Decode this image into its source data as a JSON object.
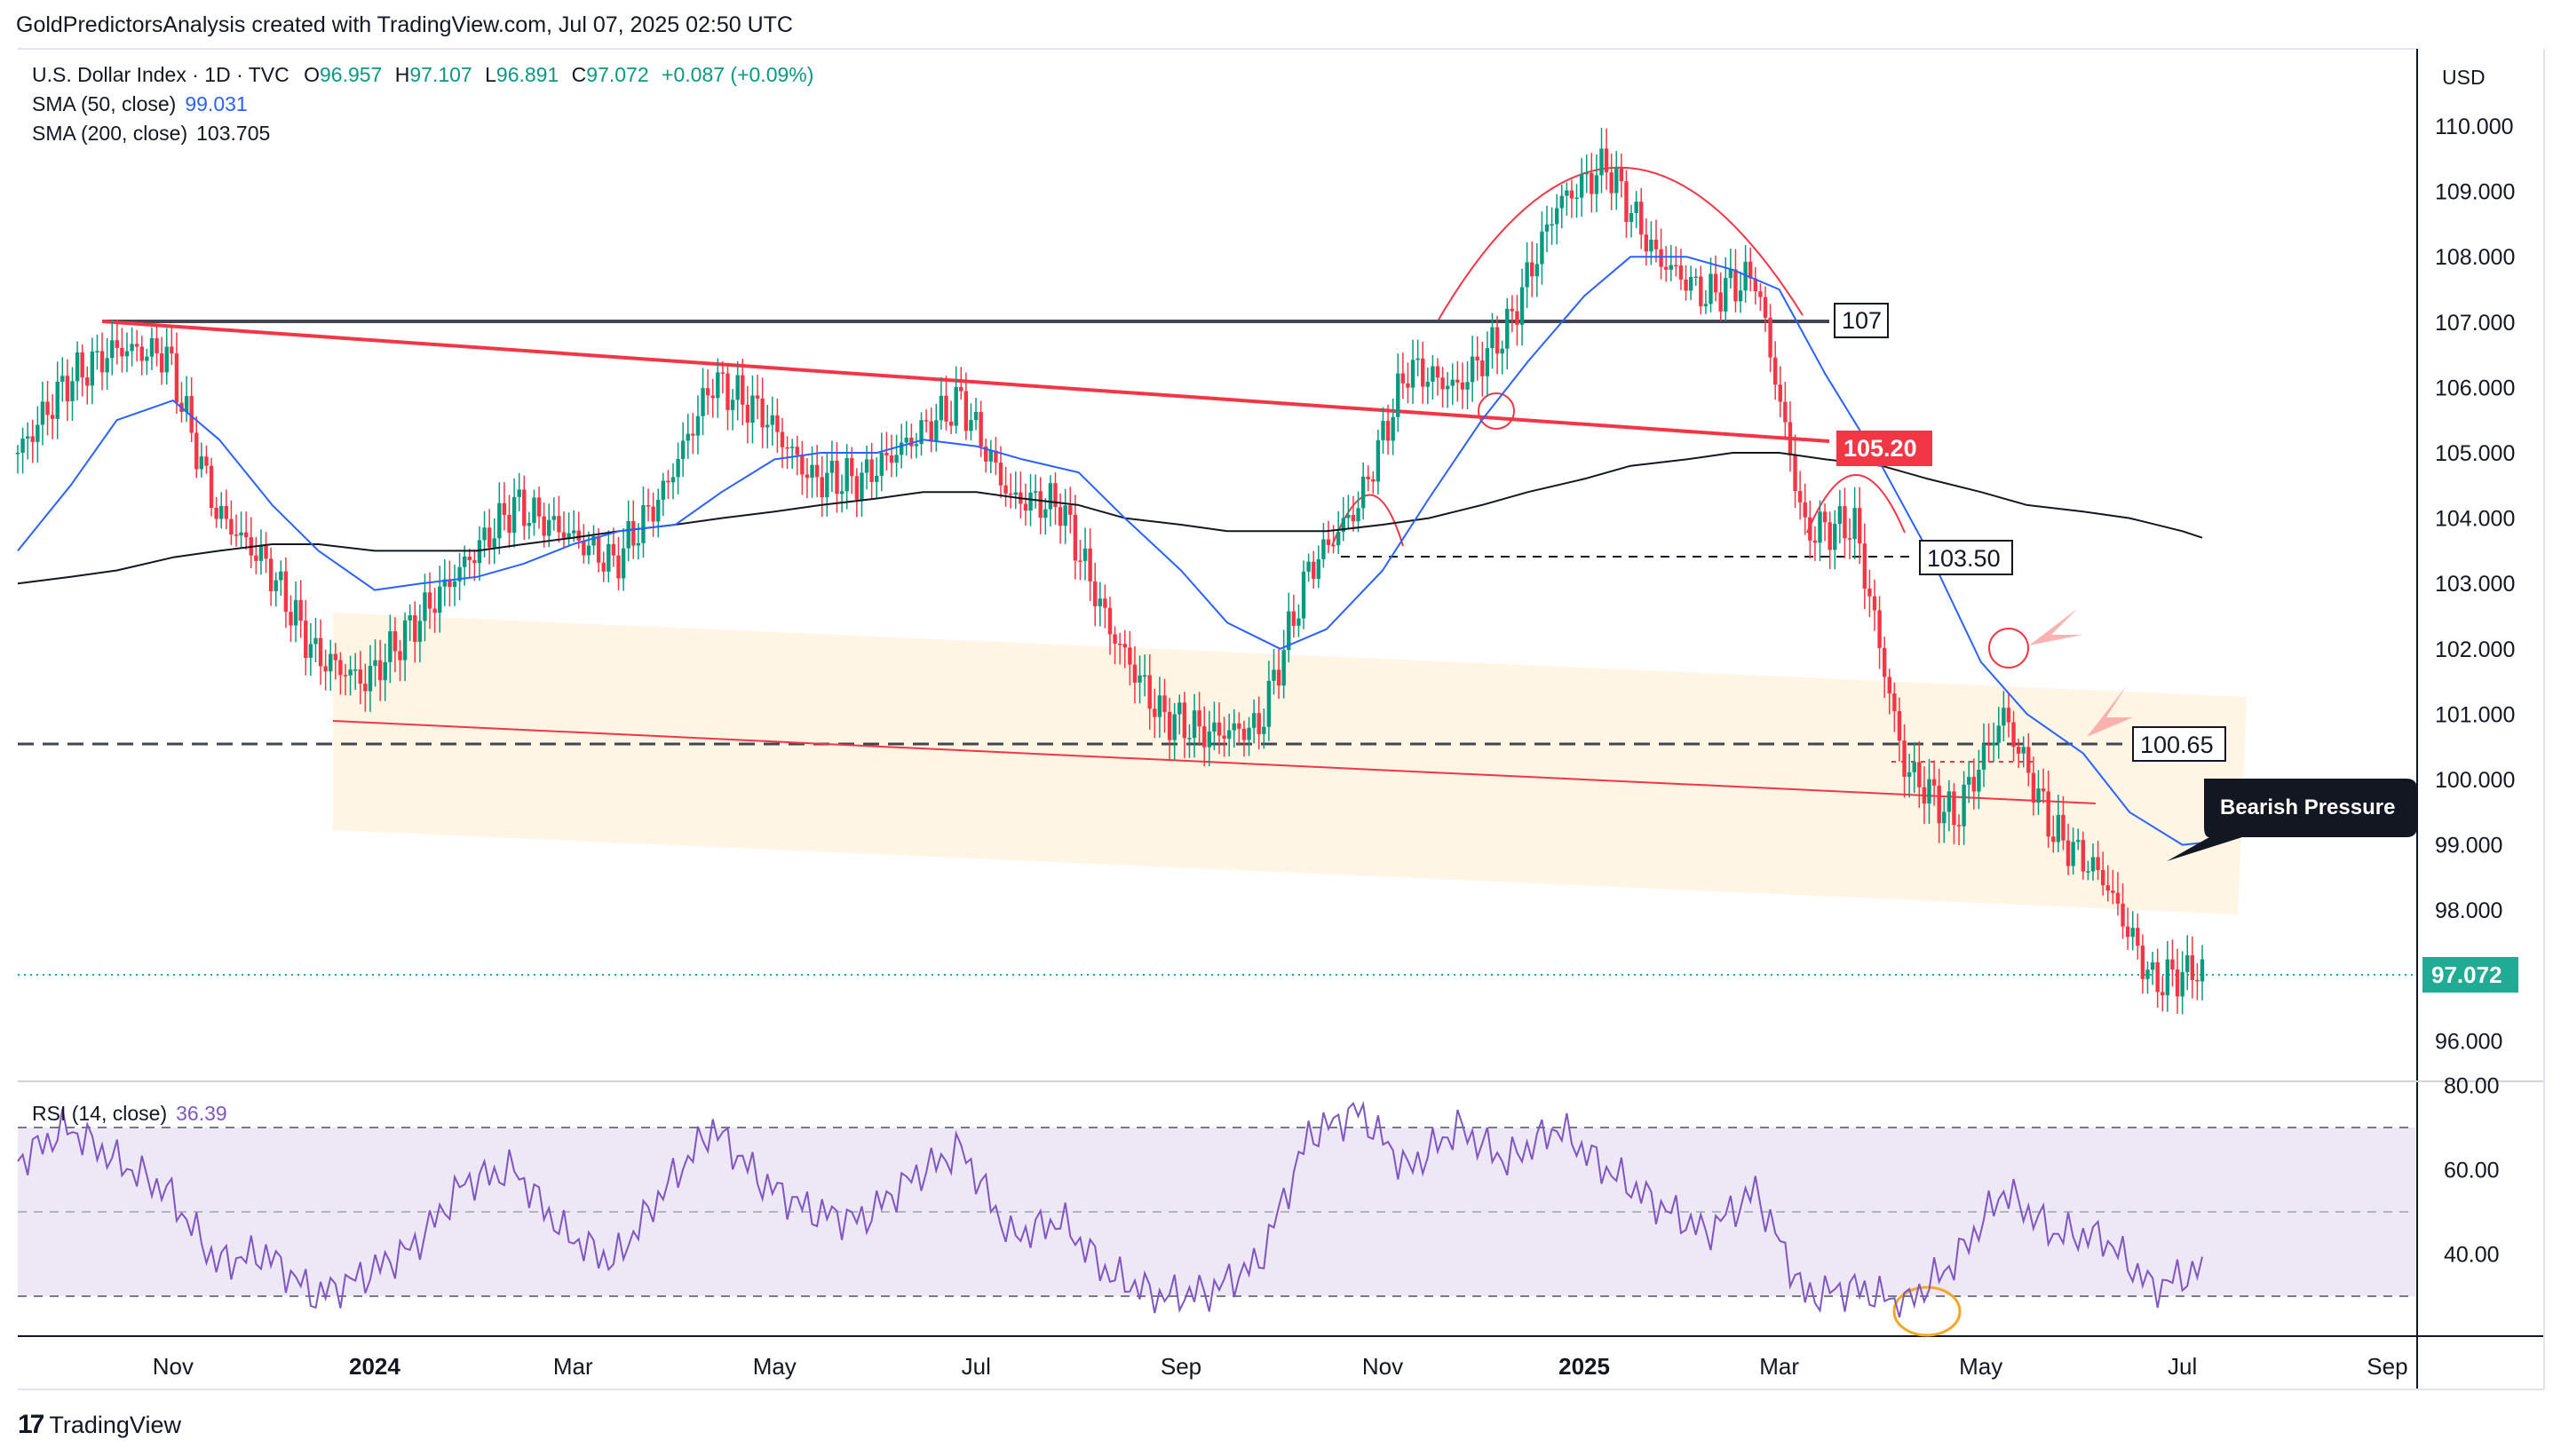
{
  "header": {
    "credit": "GoldPredictorsAnalysis created with TradingView.com, Jul 07, 2025 02:50 UTC"
  },
  "legend": {
    "title": "U.S. Dollar Index · 1D · TVC",
    "o_label": "O",
    "o_val": "96.957",
    "h_label": "H",
    "h_val": "97.107",
    "l_label": "L",
    "l_val": "96.891",
    "c_label": "C",
    "c_val": "97.072",
    "change": "+0.087 (+0.09%)",
    "sma50_label": "SMA (50, close)",
    "sma50_val": "99.031",
    "sma200_label": "SMA (200, close)",
    "sma200_val": "103.705",
    "rsi_label": "RSI (14, close)",
    "rsi_val": "36.39"
  },
  "colors": {
    "up": "#089981",
    "down": "#f23645",
    "sma50": "#2962ff",
    "sma200": "#131722",
    "red_line": "#f23645",
    "band": "#fdf1dc",
    "rsi_line": "#7e57c2",
    "rsi_band": "#ede7f6",
    "label_box": "#131722",
    "price_tag": "#22ab94",
    "circle_orange": "#f5a623",
    "arrow_pink": "#f8a5a5"
  },
  "axis": {
    "currency": "USD",
    "price_ticks": [
      "110.000",
      "109.000",
      "108.000",
      "107.000",
      "106.000",
      "105.000",
      "104.000",
      "103.000",
      "102.000",
      "101.000",
      "100.000",
      "99.000",
      "98.000",
      "96.000"
    ],
    "rsi_ticks": [
      "80.00",
      "60.00",
      "40.00"
    ],
    "time_ticks": [
      "Nov",
      "2024",
      "Mar",
      "May",
      "Jul",
      "Sep",
      "Nov",
      "2025",
      "Mar",
      "May",
      "Jul",
      "Sep"
    ]
  },
  "annotations": {
    "level_107": "107",
    "level_105": "105.20",
    "level_103": "103.50",
    "level_100": "100.65",
    "bearish": "Bearish Pressure",
    "last_price": "97.072"
  },
  "footer": {
    "brand": "TradingView",
    "logo_icon": "tradingview-logo-icon"
  },
  "chart_data": {
    "type": "candlestick-line",
    "title": "U.S. Dollar Index · 1D · TVC",
    "ylim": [
      95.5,
      111.5
    ],
    "x": [
      "2023-09-15",
      "2023-10-01",
      "2023-10-15",
      "2023-11-01",
      "2023-11-15",
      "2023-12-01",
      "2023-12-15",
      "2024-01-01",
      "2024-01-15",
      "2024-02-01",
      "2024-02-15",
      "2024-03-01",
      "2024-03-15",
      "2024-04-01",
      "2024-04-15",
      "2024-05-01",
      "2024-05-15",
      "2024-06-01",
      "2024-06-15",
      "2024-07-01",
      "2024-07-15",
      "2024-08-01",
      "2024-08-15",
      "2024-09-01",
      "2024-09-15",
      "2024-10-01",
      "2024-10-15",
      "2024-11-01",
      "2024-11-15",
      "2024-12-01",
      "2024-12-15",
      "2025-01-01",
      "2025-01-15",
      "2025-02-01",
      "2025-02-15",
      "2025-03-01",
      "2025-03-15",
      "2025-04-01",
      "2025-04-15",
      "2025-05-01",
      "2025-05-15",
      "2025-06-01",
      "2025-06-15",
      "2025-07-01",
      "2025-07-07"
    ],
    "series": [
      {
        "name": "U.S. Dollar Index",
        "values": [
          105.0,
          106.1,
          106.6,
          106.5,
          104.1,
          103.3,
          101.9,
          101.5,
          102.4,
          103.3,
          104.2,
          103.8,
          103.3,
          104.4,
          106.1,
          105.6,
          104.6,
          104.6,
          105.2,
          105.8,
          104.3,
          104.2,
          102.3,
          101.0,
          100.7,
          100.8,
          103.2,
          104.2,
          106.3,
          106.0,
          106.9,
          108.8,
          109.4,
          108.0,
          107.4,
          107.7,
          103.8,
          103.9,
          100.2,
          99.4,
          101.0,
          99.2,
          98.5,
          96.9,
          97.1
        ]
      },
      {
        "name": "SMA (50, close)",
        "values": [
          103.5,
          104.5,
          105.5,
          105.8,
          105.2,
          104.2,
          103.5,
          102.9,
          103.0,
          103.1,
          103.3,
          103.6,
          103.8,
          103.9,
          104.4,
          104.9,
          105.0,
          105.0,
          105.2,
          105.1,
          104.9,
          104.7,
          104.0,
          103.2,
          102.4,
          102.0,
          102.3,
          103.2,
          104.3,
          105.5,
          106.4,
          107.4,
          108.0,
          108.0,
          107.8,
          107.5,
          106.2,
          104.8,
          103.5,
          101.8,
          101.0,
          100.4,
          99.5,
          99.0,
          99.03
        ]
      },
      {
        "name": "SMA (200, close)",
        "values": [
          103.0,
          103.1,
          103.2,
          103.4,
          103.5,
          103.6,
          103.6,
          103.5,
          103.5,
          103.5,
          103.6,
          103.7,
          103.8,
          103.9,
          104.0,
          104.1,
          104.2,
          104.3,
          104.4,
          104.4,
          104.3,
          104.2,
          104.0,
          103.9,
          103.8,
          103.8,
          103.8,
          103.9,
          104.0,
          104.2,
          104.4,
          104.6,
          104.8,
          104.9,
          105.0,
          105.0,
          104.9,
          104.8,
          104.6,
          104.4,
          104.2,
          104.1,
          104.0,
          103.8,
          103.7
        ]
      },
      {
        "name": "RSI (14, close)",
        "values": [
          62,
          70,
          62,
          55,
          38,
          40,
          30,
          35,
          42,
          57,
          60,
          45,
          38,
          55,
          70,
          57,
          50,
          48,
          58,
          65,
          44,
          48,
          35,
          30,
          31,
          38,
          68,
          74,
          60,
          70,
          62,
          70,
          60,
          52,
          45,
          55,
          30,
          32,
          28,
          38,
          55,
          45,
          44,
          32,
          36.39
        ]
      }
    ]
  }
}
